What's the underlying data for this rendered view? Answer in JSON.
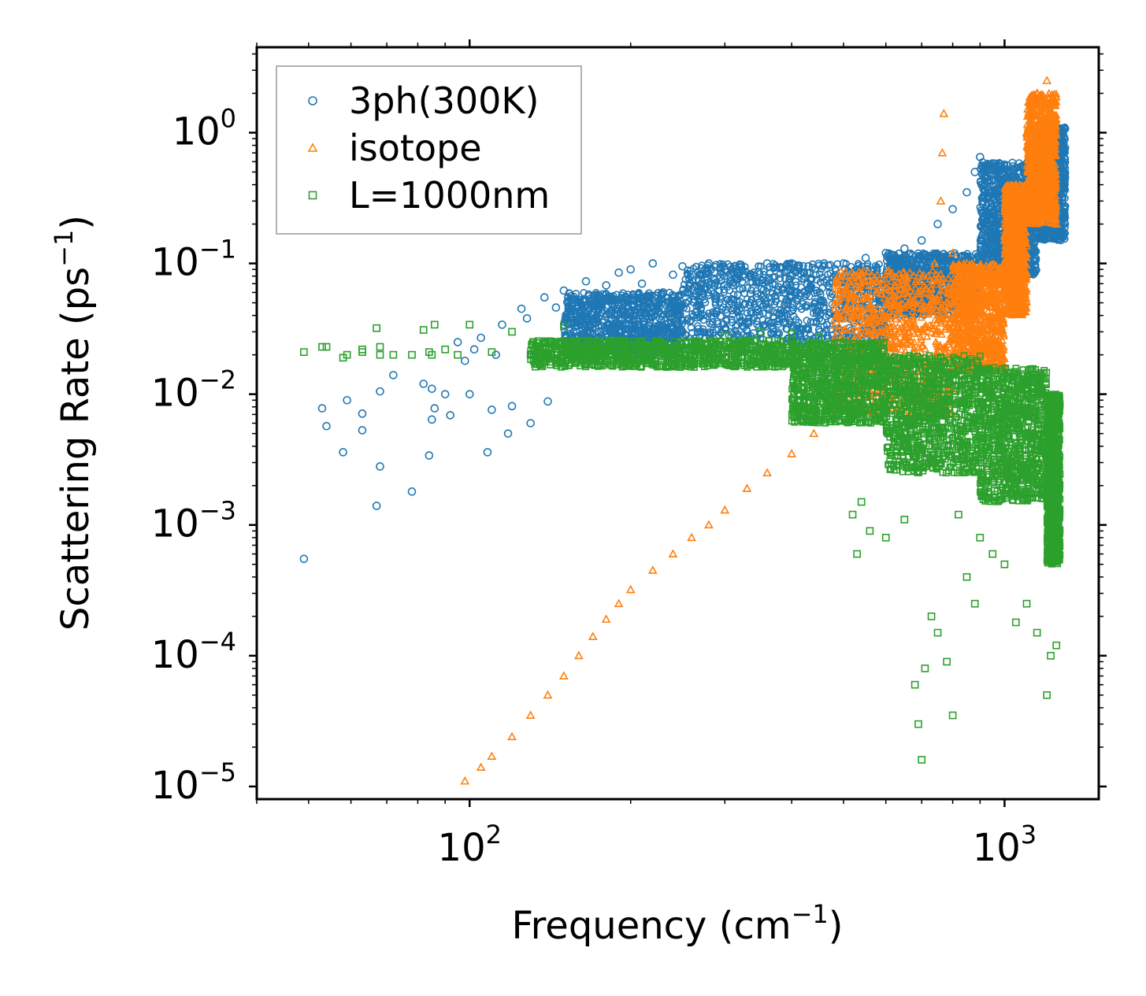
{
  "chart_data": {
    "type": "scatter",
    "title": "",
    "xlabel": "Frequency",
    "xlabel_unit_base": "(cm",
    "xlabel_unit_exp": "−1",
    "xlabel_unit_close": ")",
    "ylabel": "Scattering Rate",
    "ylabel_unit_base": "(ps",
    "ylabel_unit_exp": "−1",
    "ylabel_unit_close": ")",
    "xscale": "log",
    "yscale": "log",
    "xlim": [
      40,
      1500
    ],
    "ylim": [
      8e-06,
      4.5
    ],
    "x_ticks": [
      {
        "value": 100,
        "base": "10",
        "exp": "2"
      },
      {
        "value": 1000,
        "base": "10",
        "exp": "3"
      }
    ],
    "y_ticks": [
      {
        "value": 1,
        "base": "10",
        "exp": "0"
      },
      {
        "value": 0.1,
        "base": "10",
        "exp": "−1"
      },
      {
        "value": 0.01,
        "base": "10",
        "exp": "−2"
      },
      {
        "value": 0.001,
        "base": "10",
        "exp": "−3"
      },
      {
        "value": 0.0001,
        "base": "10",
        "exp": "−4"
      },
      {
        "value": 1e-05,
        "base": "10",
        "exp": "−5"
      }
    ],
    "legend_position": "top-left",
    "series": [
      {
        "name": "3ph(300K)",
        "marker": "circle",
        "color": "#1f77b4",
        "points": [
          [
            49,
            0.00055
          ],
          [
            53,
            0.0078
          ],
          [
            54,
            0.0057
          ],
          [
            58,
            0.0036
          ],
          [
            59,
            0.009
          ],
          [
            63,
            0.0071
          ],
          [
            63,
            0.0053
          ],
          [
            67,
            0.0014
          ],
          [
            68,
            0.0028
          ],
          [
            68,
            0.0105
          ],
          [
            72,
            0.014
          ],
          [
            78,
            0.0018
          ],
          [
            82,
            0.012
          ],
          [
            84,
            0.0034
          ],
          [
            85,
            0.0064
          ],
          [
            85,
            0.011
          ],
          [
            86,
            0.0078
          ],
          [
            90,
            0.01
          ],
          [
            92,
            0.0069
          ],
          [
            95,
            0.025
          ],
          [
            98,
            0.018
          ],
          [
            100,
            0.01
          ],
          [
            102,
            0.022
          ],
          [
            105,
            0.027
          ],
          [
            108,
            0.0036
          ],
          [
            110,
            0.0076
          ],
          [
            112,
            0.02
          ],
          [
            115,
            0.034
          ],
          [
            118,
            0.005
          ],
          [
            120,
            0.0081
          ],
          [
            125,
            0.045
          ],
          [
            128,
            0.038
          ],
          [
            130,
            0.006
          ],
          [
            132,
            0.02
          ],
          [
            138,
            0.055
          ],
          [
            140,
            0.0088
          ],
          [
            145,
            0.046
          ],
          [
            150,
            0.062
          ],
          [
            155,
            0.035
          ],
          [
            160,
            0.025
          ],
          [
            165,
            0.073
          ],
          [
            170,
            0.048
          ],
          [
            175,
            0.04
          ],
          [
            180,
            0.068
          ],
          [
            185,
            0.03
          ],
          [
            190,
            0.085
          ],
          [
            195,
            0.055
          ],
          [
            200,
            0.09
          ],
          [
            210,
            0.07
          ],
          [
            220,
            0.1
          ],
          [
            230,
            0.06
          ],
          [
            240,
            0.082
          ],
          [
            250,
            0.095
          ],
          [
            265,
            0.075
          ],
          [
            280,
            0.1
          ],
          [
            300,
            0.09
          ],
          [
            320,
            0.098
          ],
          [
            340,
            0.085
          ],
          [
            360,
            0.1
          ],
          [
            380,
            0.092
          ],
          [
            400,
            0.1
          ],
          [
            430,
            0.095
          ],
          [
            460,
            0.1
          ],
          [
            500,
            0.1
          ],
          [
            550,
            0.11
          ],
          [
            600,
            0.12
          ],
          [
            650,
            0.13
          ],
          [
            700,
            0.15
          ],
          [
            750,
            0.2
          ],
          [
            800,
            0.26
          ],
          [
            850,
            0.35
          ],
          [
            880,
            0.5
          ],
          [
            900,
            0.65
          ],
          [
            950,
            0.3
          ],
          [
            1000,
            0.4
          ],
          [
            1050,
            0.3
          ],
          [
            1100,
            0.12
          ],
          [
            1150,
            0.8
          ],
          [
            1200,
            1.1
          ],
          [
            1250,
            0.5
          ]
        ],
        "bands": [
          {
            "x": [
              150,
              250
            ],
            "y": [
              0.02,
              0.06
            ]
          },
          {
            "x": [
              250,
              600
            ],
            "y": [
              0.025,
              0.1
            ]
          },
          {
            "x": [
              600,
              900
            ],
            "y": [
              0.04,
              0.12
            ]
          },
          {
            "x": [
              900,
              1150
            ],
            "y": [
              0.08,
              0.6
            ]
          },
          {
            "x": [
              1150,
              1300
            ],
            "y": [
              0.15,
              1.1
            ]
          }
        ]
      },
      {
        "name": "isotope",
        "marker": "triangle",
        "color": "#ff7f0e",
        "points": [
          [
            98,
            1.1e-05
          ],
          [
            105,
            1.4e-05
          ],
          [
            110,
            1.7e-05
          ],
          [
            120,
            2.4e-05
          ],
          [
            130,
            3.5e-05
          ],
          [
            140,
            5e-05
          ],
          [
            150,
            7e-05
          ],
          [
            160,
            0.0001
          ],
          [
            170,
            0.00014
          ],
          [
            180,
            0.00019
          ],
          [
            190,
            0.00025
          ],
          [
            200,
            0.00032
          ],
          [
            220,
            0.00045
          ],
          [
            240,
            0.0006
          ],
          [
            260,
            0.0008
          ],
          [
            280,
            0.001
          ],
          [
            300,
            0.0013
          ],
          [
            330,
            0.0019
          ],
          [
            360,
            0.0025
          ],
          [
            400,
            0.0035
          ],
          [
            440,
            0.005
          ],
          [
            480,
            0.007
          ],
          [
            520,
            0.01
          ],
          [
            560,
            0.015
          ],
          [
            600,
            0.02
          ],
          [
            650,
            0.03
          ],
          [
            700,
            0.045
          ],
          [
            740,
            0.1
          ],
          [
            760,
            0.3
          ],
          [
            765,
            0.7
          ],
          [
            770,
            1.4
          ],
          [
            800,
            0.12
          ],
          [
            850,
            0.1
          ],
          [
            900,
            0.06
          ],
          [
            950,
            0.05
          ],
          [
            1000,
            0.15
          ],
          [
            1050,
            0.4
          ],
          [
            1100,
            1.0
          ],
          [
            1150,
            2.0
          ],
          [
            1180,
            0.3
          ],
          [
            1200,
            2.5
          ],
          [
            1250,
            0.2
          ]
        ],
        "bands": [
          {
            "x": [
              480,
              800
            ],
            "y": [
              0.007,
              0.09
            ]
          },
          {
            "x": [
              800,
              1000
            ],
            "y": [
              0.015,
              0.1
            ]
          },
          {
            "x": [
              1000,
              1100
            ],
            "y": [
              0.04,
              0.4
            ]
          },
          {
            "x": [
              1100,
              1250
            ],
            "y": [
              0.2,
              2.0
            ]
          }
        ]
      },
      {
        "name": "L=1000nm",
        "marker": "square",
        "color": "#2ca02c",
        "points": [
          [
            49,
            0.021
          ],
          [
            53,
            0.023
          ],
          [
            54,
            0.023
          ],
          [
            58,
            0.019
          ],
          [
            59,
            0.02
          ],
          [
            63,
            0.021
          ],
          [
            63,
            0.022
          ],
          [
            67,
            0.032
          ],
          [
            68,
            0.023
          ],
          [
            68,
            0.02
          ],
          [
            72,
            0.02
          ],
          [
            78,
            0.02
          ],
          [
            82,
            0.031
          ],
          [
            84,
            0.021
          ],
          [
            85,
            0.02
          ],
          [
            86,
            0.034
          ],
          [
            90,
            0.022
          ],
          [
            95,
            0.02
          ],
          [
            100,
            0.034
          ],
          [
            110,
            0.021
          ],
          [
            120,
            0.03
          ],
          [
            130,
            0.02
          ],
          [
            140,
            0.025
          ],
          [
            150,
            0.033
          ],
          [
            160,
            0.021
          ],
          [
            180,
            0.021
          ],
          [
            200,
            0.02
          ],
          [
            230,
            0.022
          ],
          [
            260,
            0.025
          ],
          [
            300,
            0.028
          ],
          [
            350,
            0.03
          ],
          [
            400,
            0.029
          ],
          [
            450,
            0.027
          ],
          [
            500,
            0.025
          ],
          [
            520,
            0.0012
          ],
          [
            530,
            0.0006
          ],
          [
            540,
            0.0015
          ],
          [
            560,
            0.0009
          ],
          [
            600,
            0.0008
          ],
          [
            650,
            0.0011
          ],
          [
            680,
            6e-05
          ],
          [
            690,
            3e-05
          ],
          [
            700,
            1.6e-05
          ],
          [
            710,
            8e-05
          ],
          [
            730,
            0.0002
          ],
          [
            750,
            0.00015
          ],
          [
            780,
            9e-05
          ],
          [
            800,
            3.5e-05
          ],
          [
            820,
            0.0012
          ],
          [
            850,
            0.0004
          ],
          [
            880,
            0.00025
          ],
          [
            900,
            0.0008
          ],
          [
            950,
            0.0006
          ],
          [
            1000,
            0.0005
          ],
          [
            1050,
            0.00018
          ],
          [
            1100,
            0.00025
          ],
          [
            1150,
            0.00015
          ],
          [
            1200,
            5e-05
          ],
          [
            1220,
            0.0001
          ],
          [
            1250,
            0.00012
          ]
        ],
        "bands": [
          {
            "x": [
              130,
              400
            ],
            "y": [
              0.016,
              0.026
            ]
          },
          {
            "x": [
              400,
              600
            ],
            "y": [
              0.006,
              0.025
            ]
          },
          {
            "x": [
              600,
              900
            ],
            "y": [
              0.0025,
              0.02
            ]
          },
          {
            "x": [
              900,
              1200
            ],
            "y": [
              0.0015,
              0.016
            ]
          },
          {
            "x": [
              1200,
              1270
            ],
            "y": [
              0.0005,
              0.01
            ]
          }
        ]
      }
    ]
  }
}
